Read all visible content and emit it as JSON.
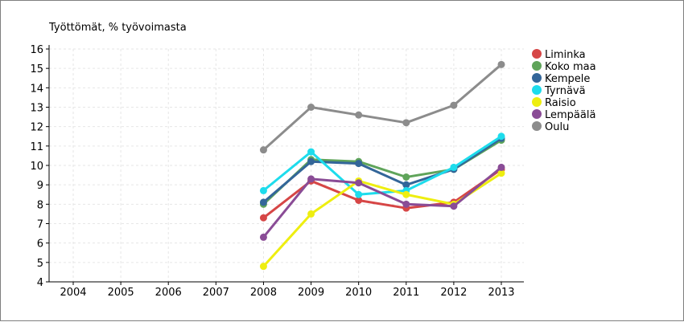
{
  "chart_data": {
    "type": "line",
    "title": "Työttömät, % työvoimasta",
    "xlabel": "",
    "ylabel": "",
    "x": [
      "2004",
      "2005",
      "2006",
      "2007",
      "2008",
      "2009",
      "2010",
      "2011",
      "2012",
      "2013"
    ],
    "ylim": [
      4,
      16
    ],
    "yticks": [
      4,
      5,
      6,
      7,
      8,
      9,
      10,
      11,
      12,
      13,
      14,
      15,
      16
    ],
    "grid": true,
    "legend": "right",
    "series": [
      {
        "name": "Liminka",
        "color": "#d64646",
        "values": [
          null,
          null,
          null,
          null,
          7.3,
          9.2,
          8.2,
          7.8,
          8.1,
          9.8
        ]
      },
      {
        "name": "Koko maa",
        "color": "#5fa45a",
        "values": [
          null,
          null,
          null,
          null,
          8.0,
          10.3,
          10.2,
          9.4,
          9.8,
          11.3
        ]
      },
      {
        "name": "Kempele",
        "color": "#336699",
        "values": [
          null,
          null,
          null,
          null,
          8.1,
          10.2,
          10.1,
          9.0,
          9.8,
          11.4
        ]
      },
      {
        "name": "Tyrnävä",
        "color": "#1ddcec",
        "values": [
          null,
          null,
          null,
          null,
          8.7,
          10.7,
          8.5,
          8.7,
          9.9,
          11.5
        ]
      },
      {
        "name": "Raisio",
        "color": "#eeee10",
        "values": [
          null,
          null,
          null,
          null,
          4.8,
          7.5,
          9.2,
          8.5,
          8.0,
          9.6
        ]
      },
      {
        "name": "Lempäälä",
        "color": "#8a4c96",
        "values": [
          null,
          null,
          null,
          null,
          6.3,
          9.3,
          9.1,
          8.0,
          7.9,
          9.9
        ]
      },
      {
        "name": "Oulu",
        "color": "#8c8c8c",
        "values": [
          null,
          null,
          null,
          null,
          10.8,
          13.0,
          12.6,
          12.2,
          13.1,
          15.2
        ]
      }
    ]
  }
}
